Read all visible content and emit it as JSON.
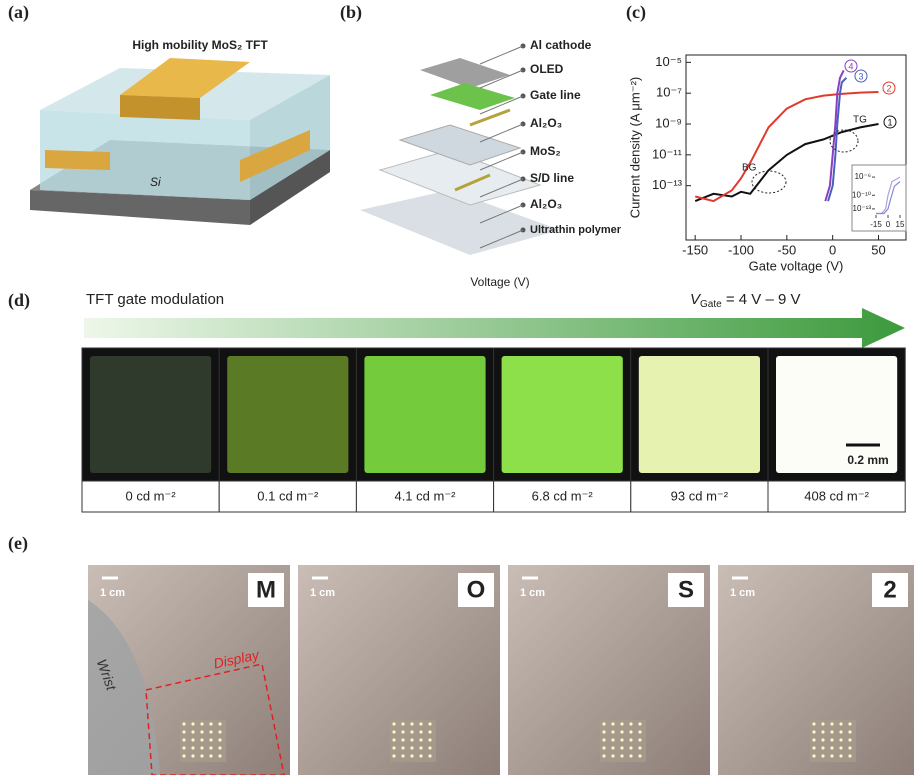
{
  "panels": {
    "a": {
      "letter": "(a)",
      "title": "High mobility MoS₂ TFT",
      "substrate": "Si"
    },
    "b": {
      "letter": "(b)",
      "layers": [
        "Al cathode",
        "OLED",
        "Gate line",
        "Al₂O₃",
        "MoS₂",
        "S/D line",
        "Al₂O₃",
        "Ultrathin polymer"
      ],
      "caption": "Voltage (V)"
    },
    "c": {
      "letter": "(c)"
    },
    "d": {
      "letter": "(d)",
      "arrow_label": "TFT gate modulation",
      "range_label": "V",
      "range_sub": "Gate",
      "range_value": " = 4 V – 9 V",
      "scale_bar": "0.2 mm",
      "luminance": [
        "0 cd m⁻²",
        "0.1 cd m⁻²",
        "4.1 cd m⁻²",
        "6.8 cd m⁻²",
        "93 cd m⁻²",
        "408 cd m⁻²"
      ]
    },
    "e": {
      "letter": "(e)",
      "scale": "1 cm",
      "letters": [
        "M",
        "O",
        "S",
        "2"
      ],
      "wrist": "Wrist",
      "display": "Display"
    }
  },
  "chart_data": {
    "type": "line",
    "x_label": "Gate voltage (V)",
    "y_label": "Current density (A μm⁻²)",
    "log_y": true,
    "xlim": [
      -160,
      80
    ],
    "xticks": [
      -150,
      -100,
      -50,
      0,
      50
    ],
    "ylim": [
      3e-17,
      3e-05
    ],
    "yticks": [
      {
        "value": 1e-05,
        "label": "10⁻⁵"
      },
      {
        "value": 1e-07,
        "label": "10⁻⁷"
      },
      {
        "value": 1e-09,
        "label": "10⁻⁹"
      },
      {
        "value": 1e-11,
        "label": "10⁻¹¹"
      },
      {
        "value": 1e-13,
        "label": "10⁻¹³"
      }
    ],
    "annotations": [
      "BG",
      "TG"
    ],
    "series": [
      {
        "name": "1",
        "color": "#111111",
        "x": [
          -150,
          -130,
          -110,
          -100,
          -90,
          -70,
          -50,
          -30,
          -10,
          10,
          30,
          50
        ],
        "values": [
          1e-14,
          3e-14,
          2e-14,
          4e-14,
          3e-14,
          1e-12,
          1e-11,
          5e-11,
          1e-10,
          3e-10,
          6e-10,
          1e-09
        ]
      },
      {
        "name": "2",
        "color": "#e03a2e",
        "x": [
          -150,
          -130,
          -110,
          -100,
          -90,
          -70,
          -50,
          -30,
          -10,
          10,
          30,
          50
        ],
        "values": [
          2e-14,
          1e-14,
          5e-14,
          3e-13,
          3e-12,
          6e-10,
          1e-08,
          4e-08,
          7e-08,
          9e-08,
          1.1e-07,
          1.2e-07
        ]
      },
      {
        "name": "3",
        "color": "#4a5fc0",
        "x": [
          -5,
          0,
          3,
          5,
          8,
          10,
          15
        ],
        "values": [
          1e-14,
          1e-13,
          1e-11,
          1e-09,
          1e-07,
          5e-07,
          1e-06
        ]
      },
      {
        "name": "4",
        "color": "#8a3fc0",
        "x": [
          -8,
          -3,
          0,
          3,
          5,
          8,
          12
        ],
        "values": [
          1e-14,
          1e-13,
          1e-11,
          1e-09,
          1e-07,
          1e-06,
          3e-06
        ]
      }
    ],
    "inset": {
      "xlim": [
        -20,
        20
      ],
      "xticks": [
        -15,
        0,
        15
      ],
      "ylim": [
        1e-15,
        0.0001
      ],
      "yticks": [
        {
          "value": 1e-06,
          "label": "10⁻⁶"
        },
        {
          "value": 1e-10,
          "label": "10⁻¹⁰"
        },
        {
          "value": 1e-13,
          "label": "10⁻¹³"
        }
      ],
      "series": [
        {
          "color": "#b39ddb",
          "x": [
            -15,
            -8,
            -3,
            0,
            5,
            15
          ],
          "values": [
            1e-14,
            1e-14,
            1e-13,
            1e-10,
            1e-07,
            1e-06
          ]
        },
        {
          "color": "#7f8fd6",
          "x": [
            -15,
            -5,
            0,
            3,
            8,
            15
          ],
          "values": [
            1e-14,
            1e-14,
            1e-13,
            1e-11,
            1e-08,
            1e-07
          ]
        }
      ]
    }
  }
}
